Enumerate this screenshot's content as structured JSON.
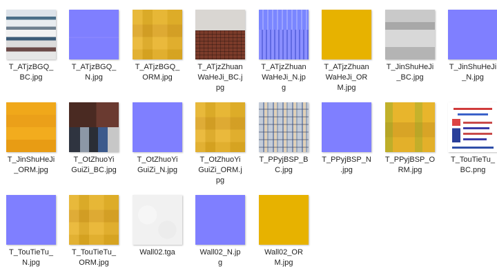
{
  "files": [
    {
      "name": "T_ATjzBGQ_BC.jpg",
      "texture": "stripes"
    },
    {
      "name": "T_ATjzBGQ_N.jpg",
      "texture": "bluenormal-seam"
    },
    {
      "name": "T_ATjzBGQ_ORM.jpg",
      "texture": "orm-patch"
    },
    {
      "name": "T_ATjzZhuanWaHeJi_BC.jpg",
      "texture": "brick"
    },
    {
      "name": "T_ATjzZhuanWaHeJi_N.jpg",
      "texture": "bluetiles"
    },
    {
      "name": "T_ATjzZhuanWaHeJi_ORM.jpg",
      "texture": "yellow"
    },
    {
      "name": "T_JinShuHeJi_BC.jpg",
      "texture": "metal"
    },
    {
      "name": "T_JinShuHeJi_N.jpg",
      "texture": "bluenormal"
    },
    {
      "name": "T_JinShuHeJi_ORM.jpg",
      "texture": "orange"
    },
    {
      "name": "T_OtZhuoYiGuiZi_BC.jpg",
      "texture": "dark"
    },
    {
      "name": "T_OtZhuoYiGuiZi_N.jpg",
      "texture": "bluenormal"
    },
    {
      "name": "T_OtZhuoYiGuiZi_ORM.jpg",
      "texture": "orm-patch"
    },
    {
      "name": "T_PPyjBSP_BC.jpg",
      "texture": "posters"
    },
    {
      "name": "T_PPyjBSP_N.jpg",
      "texture": "bluenormal"
    },
    {
      "name": "T_PPyjBSP_ORM.jpg",
      "texture": "orm-green"
    },
    {
      "name": "T_TouTieTu_BC.png",
      "texture": "poster-doc"
    },
    {
      "name": "T_TouTieTu_N.jpg",
      "texture": "bluenormal"
    },
    {
      "name": "T_TouTieTu_ORM.jpg",
      "texture": "orm-patch"
    },
    {
      "name": "Wall02.tga",
      "texture": "white"
    },
    {
      "name": "Wall02_N.jpg",
      "texture": "bluenormal"
    },
    {
      "name": "Wall02_ORM.jpg",
      "texture": "yellow"
    }
  ],
  "labels": [
    [
      "T_ATjzBGQ_",
      "BC.jpg"
    ],
    [
      "T_ATjzBGQ_",
      "N.jpg"
    ],
    [
      "T_ATjzBGQ_",
      "ORM.jpg"
    ],
    [
      "T_ATjzZhuan",
      "WaHeJi_BC.j",
      "pg"
    ],
    [
      "T_ATjzZhuan",
      "WaHeJi_N.jp",
      "g"
    ],
    [
      "T_ATjzZhuan",
      "WaHeJi_OR",
      "M.jpg"
    ],
    [
      "T_JinShuHeJi",
      "_BC.jpg"
    ],
    [
      "T_JinShuHeJi",
      "_N.jpg"
    ],
    [
      "T_JinShuHeJi",
      "_ORM.jpg"
    ],
    [
      "T_OtZhuoYi",
      "GuiZi_BC.jpg"
    ],
    [
      "T_OtZhuoYi",
      "GuiZi_N.jpg"
    ],
    [
      "T_OtZhuoYi",
      "GuiZi_ORM.j",
      "pg"
    ],
    [
      "T_PPyjBSP_B",
      "C.jpg"
    ],
    [
      "T_PPyjBSP_N",
      ".jpg"
    ],
    [
      "T_PPyjBSP_O",
      "RM.jpg"
    ],
    [
      "T_TouTieTu_",
      "BC.png"
    ],
    [
      "T_TouTieTu_",
      "N.jpg"
    ],
    [
      "T_TouTieTu_",
      "ORM.jpg"
    ],
    [
      "Wall02.tga"
    ],
    [
      "Wall02_N.jp",
      "g"
    ],
    [
      "Wall02_OR",
      "M.jpg"
    ]
  ]
}
